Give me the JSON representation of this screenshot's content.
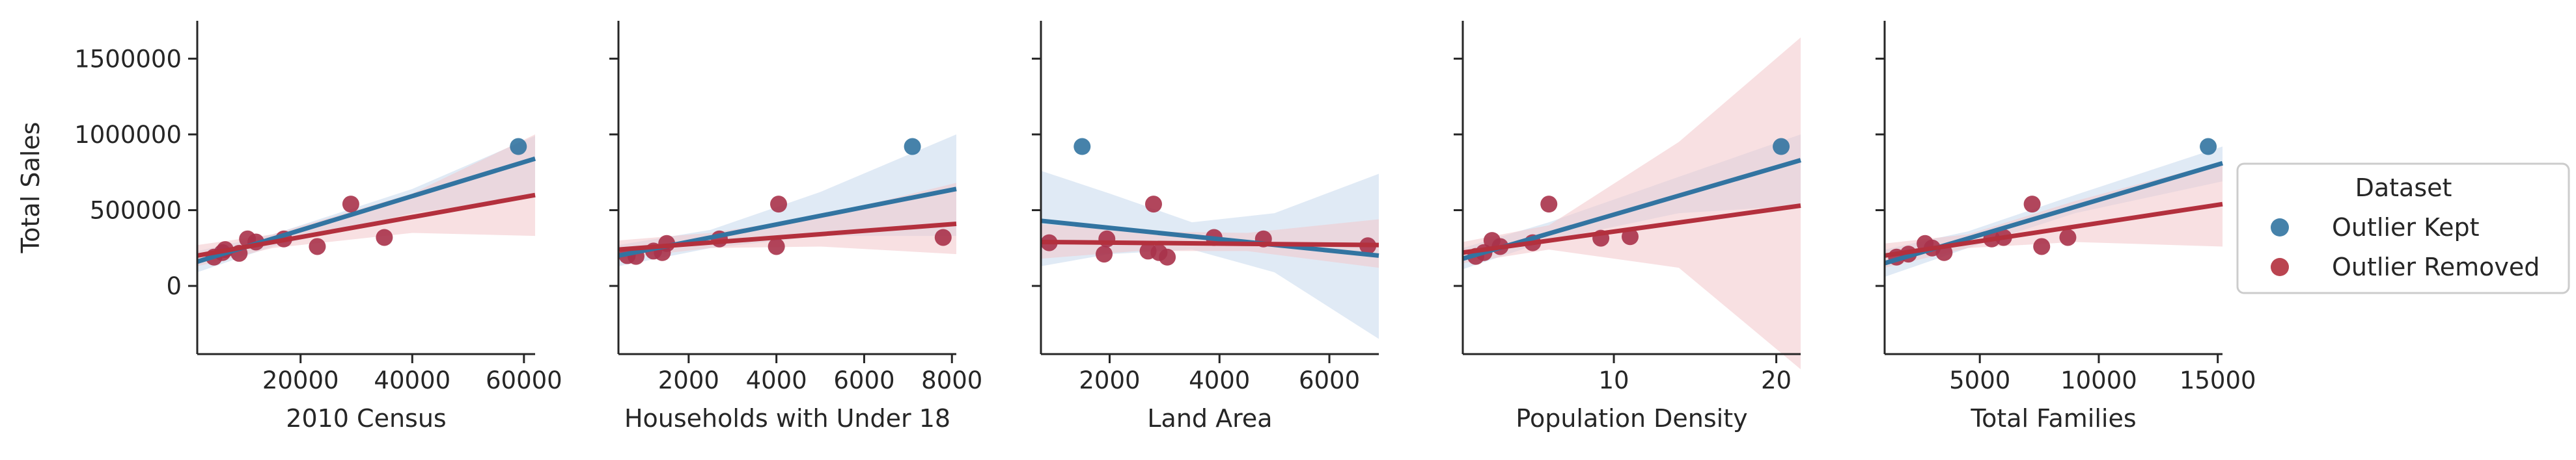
{
  "chart_data": {
    "type": "scatter",
    "ylabel": "Total Sales",
    "yticks": [
      0,
      500000,
      1000000,
      1500000
    ],
    "ylim": [
      -450000,
      1750000
    ],
    "legend": {
      "title": "Dataset",
      "placement": "right",
      "entries": [
        {
          "label": "Outlier Kept",
          "color": "#3274A1"
        },
        {
          "label": "Outlier Removed",
          "color": "#B3303D"
        }
      ]
    },
    "colors": {
      "kept_line": "#3274A1",
      "kept_band": "#C6D8EC",
      "removed_line": "#B3303D",
      "removed_band": "#F2C6CB",
      "kept_point": "#3274A1",
      "removed_point": "#A8324A"
    },
    "panels": [
      {
        "xlabel": "2010 Census",
        "xlim": [
          1500,
          62000
        ],
        "xticks": [
          20000,
          40000,
          60000
        ],
        "outlier": {
          "x": 59000,
          "y": 920000
        },
        "points": [
          [
            4500,
            190000
          ],
          [
            6000,
            220000
          ],
          [
            6500,
            240000
          ],
          [
            9000,
            215000
          ],
          [
            10500,
            310000
          ],
          [
            12000,
            290000
          ],
          [
            17000,
            310000
          ],
          [
            23000,
            260000
          ],
          [
            29000,
            540000
          ],
          [
            35000,
            320000
          ]
        ],
        "kept_fit": {
          "x0": 1500,
          "y0": 160000,
          "x1": 62000,
          "y1": 840000
        },
        "kept_band": [
          [
            1500,
            90000,
            230000
          ],
          [
            15000,
            260000,
            340000
          ],
          [
            40000,
            480000,
            640000
          ],
          [
            62000,
            600000,
            990000
          ]
        ],
        "removed_fit": {
          "x0": 1500,
          "y0": 200000,
          "x1": 62000,
          "y1": 600000
        },
        "removed_band": [
          [
            1500,
            130000,
            270000
          ],
          [
            15000,
            250000,
            340000
          ],
          [
            40000,
            350000,
            610000
          ],
          [
            62000,
            330000,
            1000000
          ]
        ]
      },
      {
        "xlabel": "Households with Under 18",
        "xlim": [
          400,
          8100
        ],
        "xticks": [
          2000,
          4000,
          6000,
          8000
        ],
        "outlier": {
          "x": 7100,
          "y": 920000
        },
        "points": [
          [
            600,
            200000
          ],
          [
            800,
            195000
          ],
          [
            1200,
            230000
          ],
          [
            1400,
            220000
          ],
          [
            1500,
            280000
          ],
          [
            2700,
            310000
          ],
          [
            4000,
            260000
          ],
          [
            4050,
            540000
          ],
          [
            7800,
            320000
          ]
        ],
        "kept_fit": {
          "x0": 400,
          "y0": 200000,
          "x1": 8100,
          "y1": 640000
        },
        "kept_band": [
          [
            400,
            130000,
            270000
          ],
          [
            2500,
            250000,
            370000
          ],
          [
            5000,
            330000,
            620000
          ],
          [
            8100,
            330000,
            1000000
          ]
        ],
        "removed_fit": {
          "x0": 400,
          "y0": 240000,
          "x1": 8100,
          "y1": 410000
        },
        "removed_band": [
          [
            400,
            180000,
            300000
          ],
          [
            2500,
            250000,
            350000
          ],
          [
            5000,
            260000,
            460000
          ],
          [
            8100,
            210000,
            680000
          ]
        ]
      },
      {
        "xlabel": "Land Area",
        "xlim": [
          750,
          6900
        ],
        "xticks": [
          2000,
          4000,
          6000
        ],
        "outlier": {
          "x": 1500,
          "y": 920000
        },
        "points": [
          [
            900,
            285000
          ],
          [
            1900,
            210000
          ],
          [
            1950,
            310000
          ],
          [
            2700,
            230000
          ],
          [
            2800,
            540000
          ],
          [
            2900,
            220000
          ],
          [
            3050,
            190000
          ],
          [
            3900,
            320000
          ],
          [
            4800,
            310000
          ],
          [
            6700,
            265000
          ]
        ],
        "kept_fit": {
          "x0": 750,
          "y0": 430000,
          "x1": 6900,
          "y1": 200000
        },
        "kept_band": [
          [
            750,
            130000,
            760000
          ],
          [
            2000,
            210000,
            610000
          ],
          [
            3500,
            240000,
            420000
          ],
          [
            5000,
            90000,
            480000
          ],
          [
            6900,
            -350000,
            740000
          ]
        ],
        "removed_fit": {
          "x0": 750,
          "y0": 290000,
          "x1": 6900,
          "y1": 270000
        },
        "removed_band": [
          [
            750,
            180000,
            410000
          ],
          [
            2500,
            230000,
            360000
          ],
          [
            4500,
            230000,
            350000
          ],
          [
            6900,
            120000,
            440000
          ]
        ]
      },
      {
        "xlabel": "Population Density",
        "xlim": [
          0.7,
          21.5
        ],
        "xticks": [
          10,
          20
        ],
        "outlier": {
          "x": 20.3,
          "y": 920000
        },
        "points": [
          [
            1.5,
            195000
          ],
          [
            2,
            220000
          ],
          [
            2.5,
            300000
          ],
          [
            3,
            260000
          ],
          [
            5,
            285000
          ],
          [
            6,
            540000
          ],
          [
            9.2,
            315000
          ],
          [
            11,
            325000
          ]
        ],
        "kept_fit": {
          "x0": 0.7,
          "y0": 180000,
          "x1": 21.5,
          "y1": 830000
        },
        "kept_band": [
          [
            0.7,
            110000,
            250000
          ],
          [
            6,
            300000,
            420000
          ],
          [
            14,
            480000,
            720000
          ],
          [
            21.5,
            530000,
            1000000
          ]
        ],
        "removed_fit": {
          "x0": 0.7,
          "y0": 220000,
          "x1": 21.5,
          "y1": 530000
        },
        "removed_band": [
          [
            0.7,
            150000,
            290000
          ],
          [
            6,
            240000,
            400000
          ],
          [
            14,
            120000,
            950000
          ],
          [
            21.5,
            -550000,
            1640000
          ]
        ]
      },
      {
        "xlabel": "Total Families",
        "xlim": [
          1000,
          15200
        ],
        "xticks": [
          5000,
          10000,
          15000
        ],
        "outlier": {
          "x": 14600,
          "y": 920000
        },
        "points": [
          [
            1500,
            190000
          ],
          [
            2000,
            210000
          ],
          [
            2700,
            280000
          ],
          [
            3000,
            250000
          ],
          [
            3500,
            220000
          ],
          [
            5500,
            310000
          ],
          [
            6000,
            320000
          ],
          [
            7200,
            540000
          ],
          [
            7600,
            260000
          ],
          [
            8700,
            320000
          ]
        ],
        "kept_fit": {
          "x0": 1000,
          "y0": 150000,
          "x1": 15200,
          "y1": 810000
        },
        "kept_band": [
          [
            1000,
            60000,
            240000
          ],
          [
            4500,
            250000,
            360000
          ],
          [
            9000,
            480000,
            600000
          ],
          [
            15200,
            690000,
            920000
          ]
        ],
        "removed_fit": {
          "x0": 1000,
          "y0": 200000,
          "x1": 15200,
          "y1": 540000
        },
        "removed_band": [
          [
            1000,
            120000,
            280000
          ],
          [
            4500,
            250000,
            340000
          ],
          [
            9000,
            290000,
            560000
          ],
          [
            15200,
            260000,
            820000
          ]
        ]
      }
    ]
  }
}
